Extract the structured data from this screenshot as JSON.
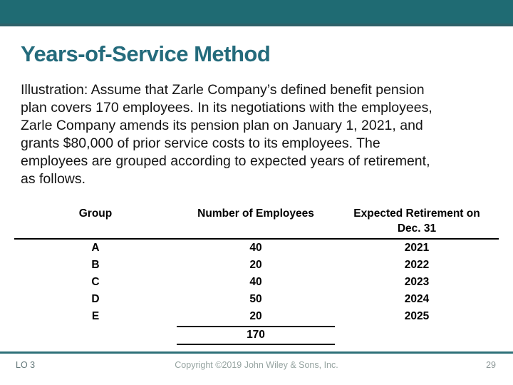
{
  "title": "Years-of-Service Method",
  "body": {
    "lines": [
      "Illustration: Assume that Zarle Company’s defined benefit pension",
      "plan covers 170 employees. In its negotiations with the employees,",
      "Zarle Company amends its pension plan on January 1, 2021, and",
      "grants $80,000 of prior service costs to its employees. The",
      "employees are grouped according to expected years of retirement,",
      "as follows."
    ]
  },
  "table": {
    "headers": {
      "group": "Group",
      "employees": "Number of Employees",
      "retirement_line1": "Expected Retirement on",
      "retirement_line2": "Dec. 31"
    },
    "rows": [
      {
        "group": "A",
        "employees": "40",
        "year": "2021"
      },
      {
        "group": "B",
        "employees": "20",
        "year": "2022"
      },
      {
        "group": "C",
        "employees": "40",
        "year": "2023"
      },
      {
        "group": "D",
        "employees": "50",
        "year": "2024"
      },
      {
        "group": "E",
        "employees": "20",
        "year": "2025"
      }
    ],
    "total": "170"
  },
  "footer": {
    "lo": "LO 3",
    "copyright": "Copyright ©2019 John Wiley & Sons, Inc.",
    "page": "29"
  },
  "colors": {
    "banner_teal": "#1f6b73",
    "banner_edge": "#2e6169",
    "title_teal": "#246b7c",
    "footer_line_teal": "#2e7078",
    "body_text": "#141414",
    "table_text": "#000000",
    "footer_text_gray": "#8d9a99"
  }
}
